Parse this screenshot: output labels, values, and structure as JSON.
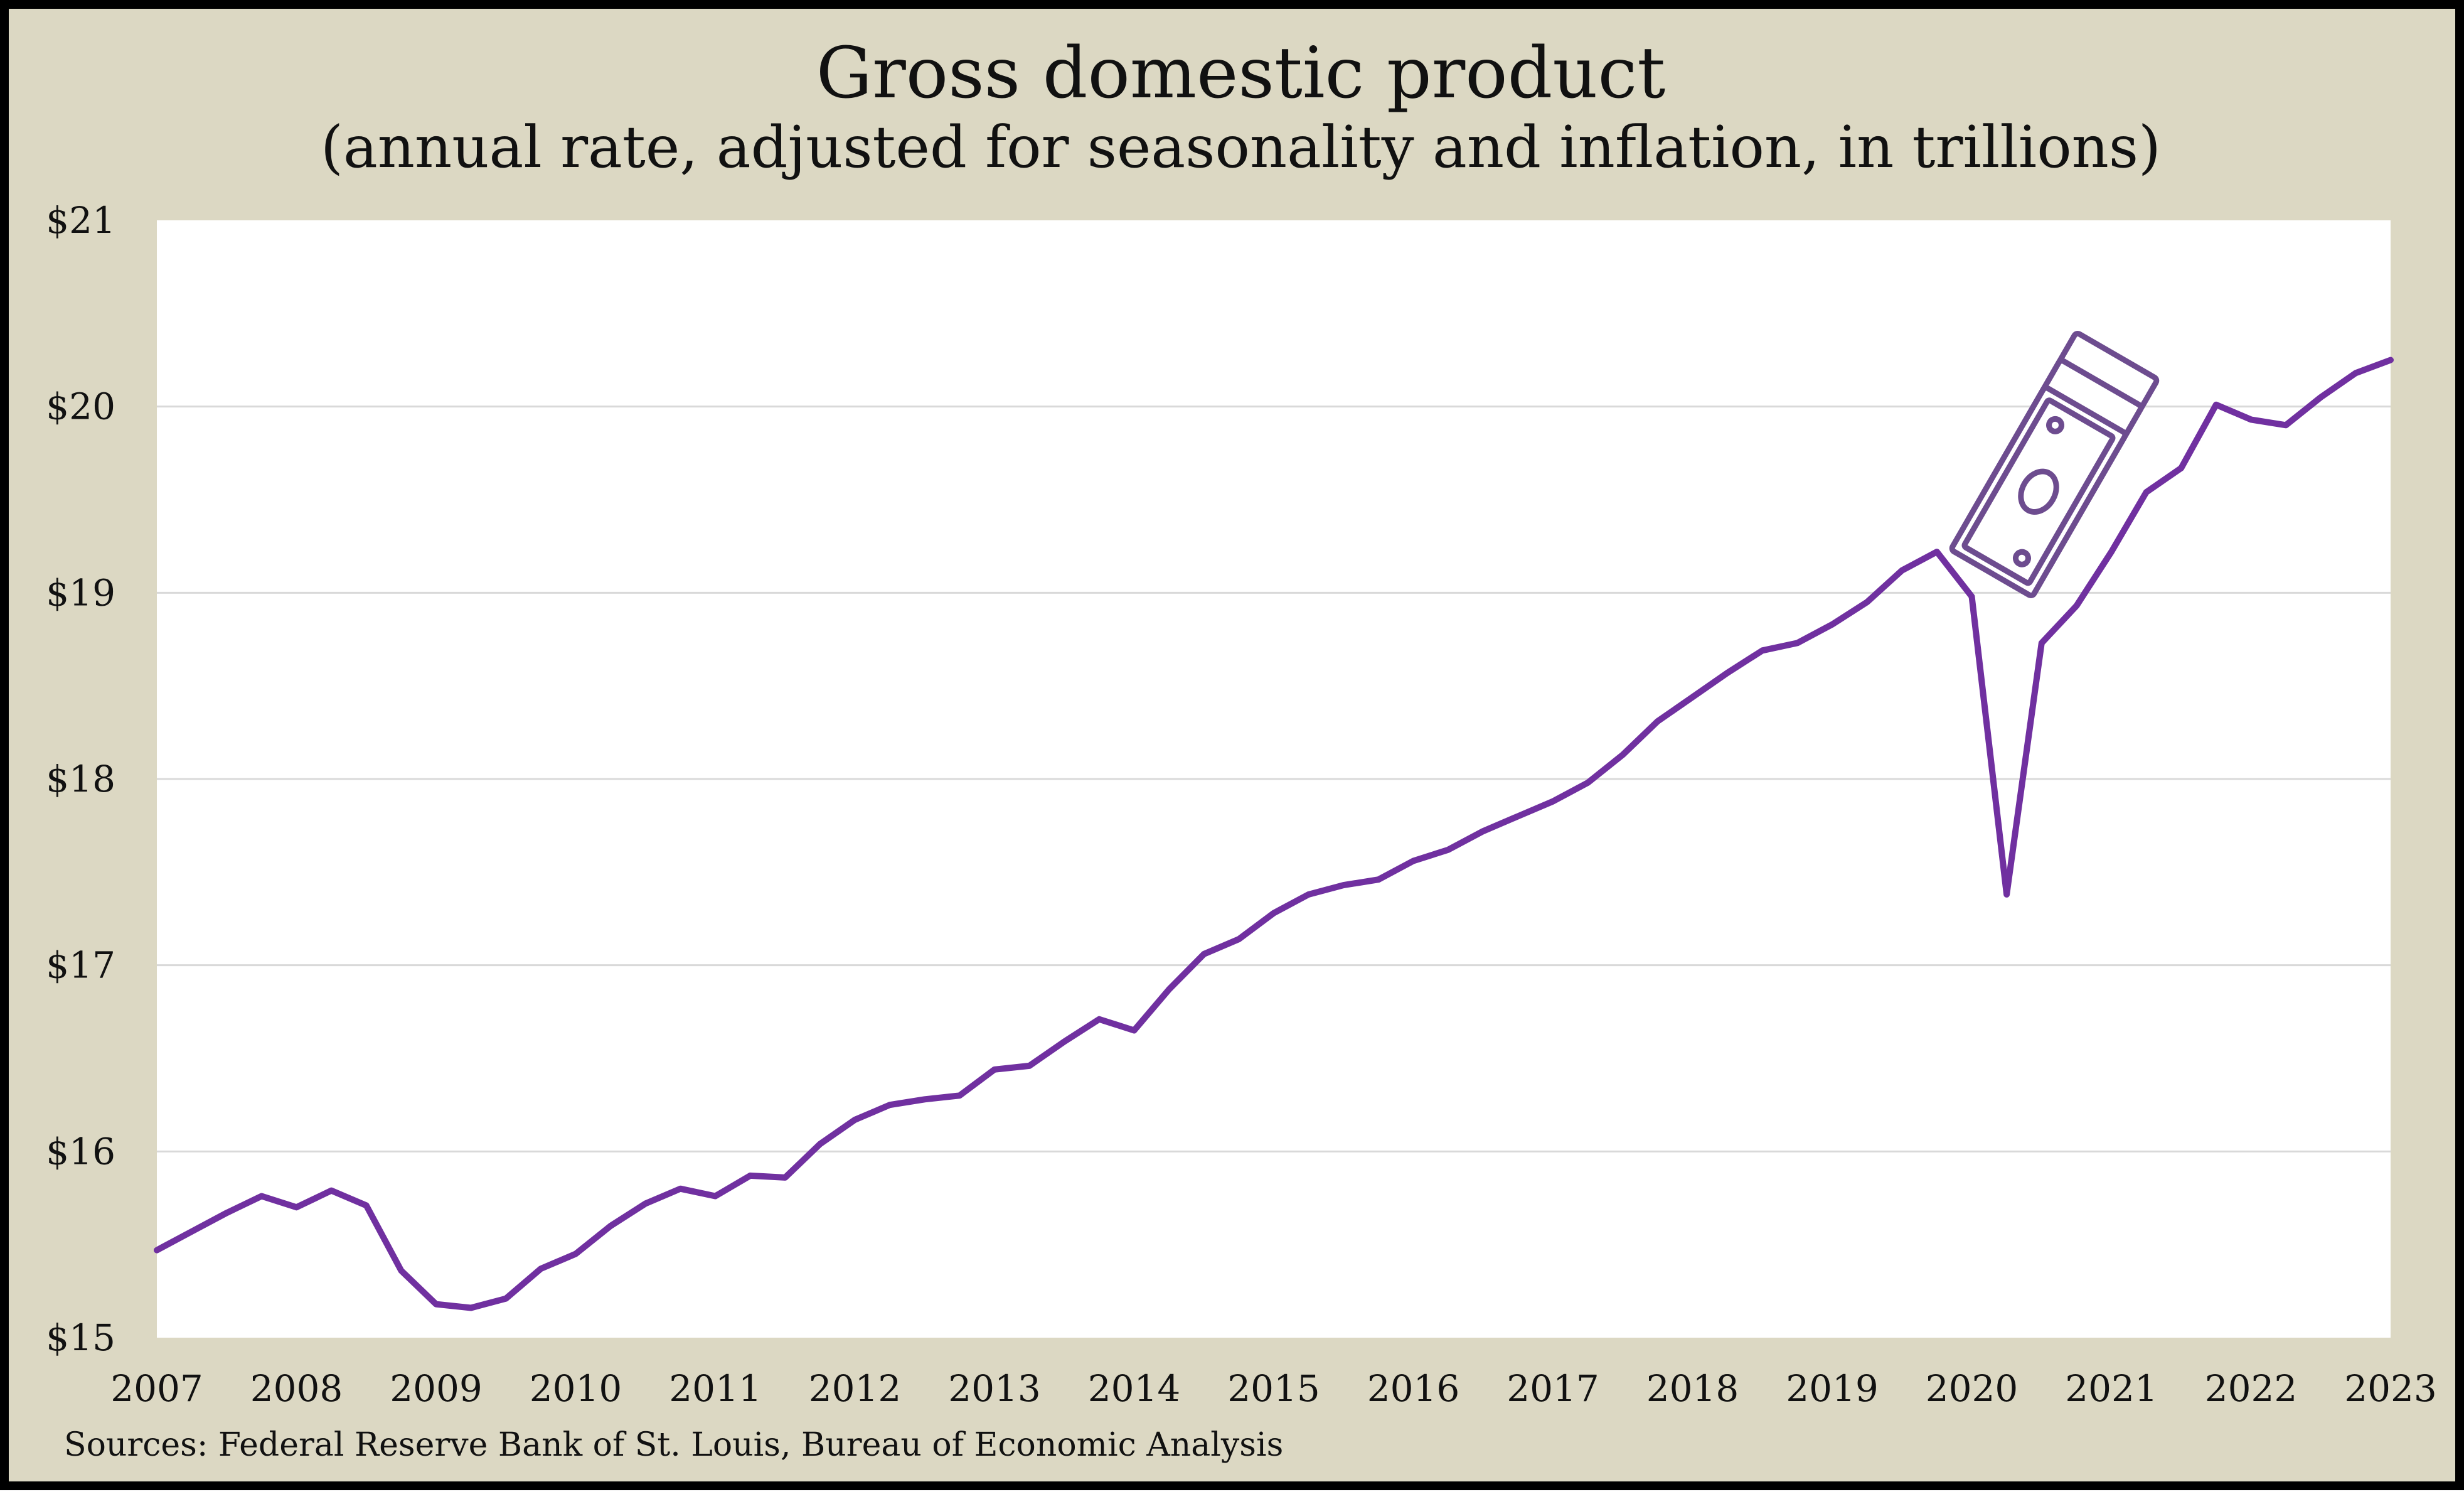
{
  "chart_data": {
    "type": "line",
    "title": "Gross domestic product",
    "subtitle": "(annual rate, adjusted for seasonality and inflation, in trillions)",
    "xlabel": "",
    "ylabel": "",
    "x_ticks": [
      "2007",
      "2008",
      "2009",
      "2010",
      "2011",
      "2012",
      "2013",
      "2014",
      "2015",
      "2016",
      "2017",
      "2018",
      "2019",
      "2020",
      "2021",
      "2022",
      "2023"
    ],
    "y_ticks": [
      {
        "value": 15,
        "label": "$15"
      },
      {
        "value": 16,
        "label": "$16"
      },
      {
        "value": 17,
        "label": "$17"
      },
      {
        "value": 18,
        "label": "$18"
      },
      {
        "value": 19,
        "label": "$19"
      },
      {
        "value": 20,
        "label": "$20"
      },
      {
        "value": 21,
        "label": "$21"
      }
    ],
    "xlim": [
      2007,
      2023
    ],
    "ylim": [
      15,
      21
    ],
    "grid": "horizontal",
    "line_color": "#7030a0",
    "series": [
      {
        "x": [
          2007.0,
          2007.25,
          2007.5,
          2007.75,
          2008.0,
          2008.25,
          2008.5,
          2008.75,
          2009.0,
          2009.25,
          2009.5,
          2009.75,
          2010.0,
          2010.25,
          2010.5,
          2010.75,
          2011.0,
          2011.25,
          2011.5,
          2011.75,
          2012.0,
          2012.25,
          2012.5,
          2012.75,
          2013.0,
          2013.25,
          2013.5,
          2013.75,
          2014.0,
          2014.25,
          2014.5,
          2014.75,
          2015.0,
          2015.25,
          2015.5,
          2015.75,
          2016.0,
          2016.25,
          2016.5,
          2016.75,
          2017.0,
          2017.25,
          2017.5,
          2017.75,
          2018.0,
          2018.25,
          2018.5,
          2018.75,
          2019.0,
          2019.25,
          2019.5,
          2019.75,
          2020.0,
          2020.25,
          2020.5,
          2020.75,
          2021.0,
          2021.25,
          2021.5,
          2021.75,
          2022.0,
          2022.25,
          2022.5,
          2022.75,
          2023.0
        ],
        "y": [
          15.47,
          15.57,
          15.67,
          15.76,
          15.7,
          15.79,
          15.71,
          15.36,
          15.18,
          15.16,
          15.21,
          15.37,
          15.45,
          15.6,
          15.72,
          15.8,
          15.76,
          15.87,
          15.86,
          16.04,
          16.17,
          16.25,
          16.28,
          16.3,
          16.44,
          16.46,
          16.59,
          16.71,
          16.65,
          16.87,
          17.06,
          17.14,
          17.28,
          17.38,
          17.43,
          17.46,
          17.56,
          17.62,
          17.72,
          17.8,
          17.88,
          17.98,
          18.13,
          18.31,
          18.44,
          18.57,
          18.69,
          18.73,
          18.83,
          18.95,
          19.12,
          19.22,
          18.98,
          17.38,
          18.73,
          18.93,
          19.22,
          19.54,
          19.67,
          20.01,
          19.93,
          19.9,
          20.05,
          20.18,
          20.25
        ]
      }
    ]
  },
  "icon": "dollar-bills-icon",
  "source": "Sources: Federal Reserve Bank of St. Louis, Bureau of Economic Analysis"
}
